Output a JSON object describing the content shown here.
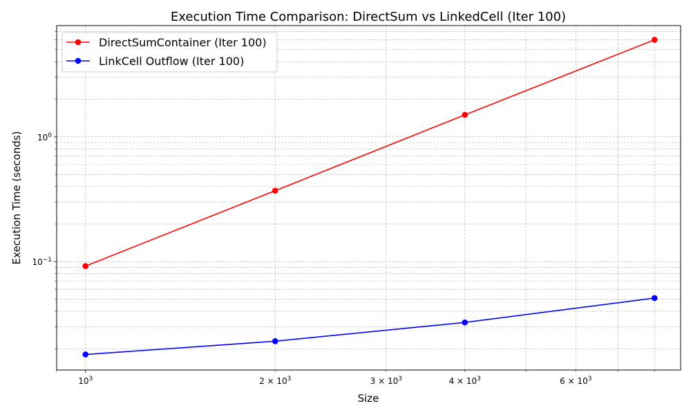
{
  "chart_data": {
    "type": "line",
    "title": "Execution Time Comparison: DirectSum vs LinkedCell (Iter 100)",
    "xlabel": "Size",
    "ylabel": "Execution Time (seconds)",
    "xscale": "log",
    "yscale": "log",
    "xlim": [
      900,
      8800
    ],
    "ylim": [
      0.0135,
      7.8
    ],
    "x": [
      1000,
      2000,
      4000,
      8000
    ],
    "grid": true,
    "legend_position": "top-left",
    "x_ticks": [
      {
        "value": 1000,
        "base": "10",
        "exp": "3",
        "coef": ""
      },
      {
        "value": 2000,
        "base": "10",
        "exp": "3",
        "coef": "2 × "
      },
      {
        "value": 3000,
        "base": "10",
        "exp": "3",
        "coef": "3 × "
      },
      {
        "value": 4000,
        "base": "10",
        "exp": "3",
        "coef": "4 × "
      },
      {
        "value": 6000,
        "base": "10",
        "exp": "3",
        "coef": "6 × "
      }
    ],
    "y_ticks": [
      {
        "value": 0.1,
        "base": "10",
        "exp": "−1"
      },
      {
        "value": 1,
        "base": "10",
        "exp": "0"
      }
    ],
    "series": [
      {
        "name": "DirectSumContainer (Iter 100)",
        "color": "#ff0000",
        "values": [
          0.092,
          0.37,
          1.5,
          6.0
        ]
      },
      {
        "name": "LinkCell Outflow (Iter 100)",
        "color": "#0000ff",
        "values": [
          0.018,
          0.023,
          0.0325,
          0.051
        ]
      }
    ]
  }
}
